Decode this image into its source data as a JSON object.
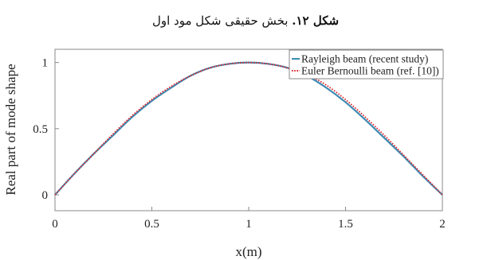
{
  "caption": {
    "label": "شکل ۱۲.",
    "text": " بخش حقیقی شکل مود اول"
  },
  "chart_data": {
    "type": "line",
    "title": "",
    "xlabel": "x(m)",
    "ylabel": "Real part of mode shape",
    "xlim": [
      0,
      2
    ],
    "ylim": [
      -0.12,
      1.1
    ],
    "x_ticks": [
      0,
      0.5,
      1,
      1.5,
      2
    ],
    "x_tick_labels": [
      "0",
      "0.5",
      "1",
      "1.5",
      "2"
    ],
    "y_ticks": [
      0,
      0.5,
      1
    ],
    "y_tick_labels": [
      "0",
      "0.5",
      "1"
    ],
    "grid": false,
    "legend": "top-right",
    "x": [
      0,
      0.1,
      0.2,
      0.3,
      0.4,
      0.5,
      0.6,
      0.7,
      0.8,
      0.9,
      1.0,
      1.1,
      1.2,
      1.3,
      1.4,
      1.5,
      1.6,
      1.7,
      1.8,
      1.9,
      2.0
    ],
    "series": [
      {
        "name": "Rayleigh beam (recent study)",
        "color": "#3d8bb4",
        "dash": "solid",
        "values": [
          0,
          0.16,
          0.31,
          0.45,
          0.59,
          0.71,
          0.81,
          0.9,
          0.96,
          0.99,
          1.0,
          0.99,
          0.96,
          0.9,
          0.81,
          0.7,
          0.57,
          0.43,
          0.29,
          0.14,
          0
        ]
      },
      {
        "name": "Euler Bernoulli beam (ref. [10])",
        "color": "#e0242b",
        "dash": "dotted",
        "values": [
          0,
          0.16,
          0.31,
          0.46,
          0.6,
          0.72,
          0.82,
          0.9,
          0.96,
          0.99,
          1.0,
          0.99,
          0.96,
          0.91,
          0.83,
          0.72,
          0.59,
          0.45,
          0.3,
          0.15,
          0
        ]
      }
    ]
  }
}
